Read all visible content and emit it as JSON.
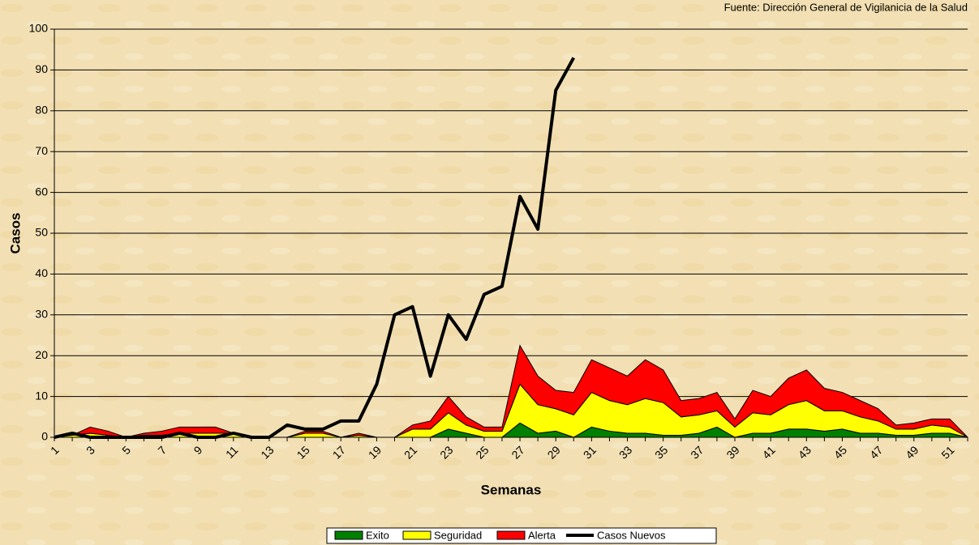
{
  "chart_data": {
    "type": "stacked-area-line",
    "source": "Fuente: Dirección General de Vigilanicia de la Salud",
    "xlabel": "Semanas",
    "ylabel": "Casos",
    "categories": [
      1,
      null,
      3,
      null,
      5,
      null,
      7,
      null,
      9,
      null,
      11,
      null,
      13,
      null,
      15,
      null,
      17,
      null,
      19,
      null,
      21,
      null,
      23,
      null,
      25,
      null,
      27,
      null,
      29,
      null,
      31,
      null,
      33,
      null,
      35,
      null,
      37,
      null,
      39,
      null,
      41,
      null,
      43,
      null,
      45,
      null,
      47,
      null,
      49,
      null,
      51,
      null
    ],
    "ylim": [
      0,
      100
    ],
    "yticks": [
      0,
      10,
      20,
      30,
      40,
      50,
      60,
      70,
      80,
      90,
      100
    ],
    "grid": true,
    "series": [
      {
        "name": "Exito",
        "color": "#008000",
        "kind": "area",
        "values": [
          0,
          0,
          0,
          0,
          0,
          0,
          0,
          0,
          0,
          0,
          0,
          0,
          0,
          0,
          0,
          0,
          0,
          0,
          0,
          0,
          0,
          0,
          2,
          1,
          0,
          0,
          3.5,
          1,
          1.5,
          0,
          2.5,
          1.5,
          1,
          1,
          0.5,
          0.5,
          1,
          2.5,
          0,
          1,
          1,
          2,
          2,
          1.5,
          2,
          1,
          1,
          0.5,
          0.5,
          1,
          1,
          0
        ]
      },
      {
        "name": "Seguridad",
        "color": "#ffff00",
        "kind": "area",
        "values": [
          0,
          0.5,
          1,
          0.5,
          0,
          0.5,
          0.5,
          1,
          1,
          1,
          1,
          0,
          0,
          0,
          1,
          1,
          0,
          0.5,
          0,
          0,
          2,
          2,
          4,
          2,
          1.5,
          1.5,
          9.5,
          7,
          5.5,
          5.5,
          8.5,
          7.5,
          7,
          8.5,
          8,
          4.5,
          4.5,
          4,
          2.5,
          5,
          4.5,
          6,
          7,
          5,
          4.5,
          4,
          3,
          1.5,
          1.5,
          2,
          1.5,
          0
        ]
      },
      {
        "name": "Alerta",
        "color": "#ff0000",
        "kind": "area",
        "values": [
          0,
          0,
          1.5,
          1,
          0,
          0.5,
          1,
          1.5,
          1.5,
          1.5,
          0,
          0,
          0,
          0,
          0.5,
          0.5,
          0,
          0.5,
          0,
          0,
          1,
          2,
          4,
          2,
          1,
          1,
          9.5,
          7,
          4.5,
          5.5,
          8,
          8,
          7,
          9.5,
          8,
          4,
          4,
          4.5,
          2,
          5.5,
          4.5,
          6.5,
          7.5,
          5.5,
          4.5,
          4,
          3,
          1,
          1.5,
          1.5,
          2,
          0
        ]
      },
      {
        "name": "Casos Nuevos",
        "color": "#000000",
        "kind": "line",
        "values": [
          0,
          1,
          0,
          0,
          0,
          0,
          0,
          1,
          0,
          0,
          1,
          0,
          0,
          3,
          2,
          2,
          4,
          4,
          13,
          30,
          32,
          15,
          30,
          24,
          35,
          37,
          59,
          51,
          85,
          93,
          null,
          null,
          null,
          null,
          null,
          null,
          null,
          null,
          null,
          null,
          null,
          null,
          null,
          null,
          null,
          null,
          null,
          null,
          null,
          null,
          null,
          null
        ]
      }
    ]
  }
}
